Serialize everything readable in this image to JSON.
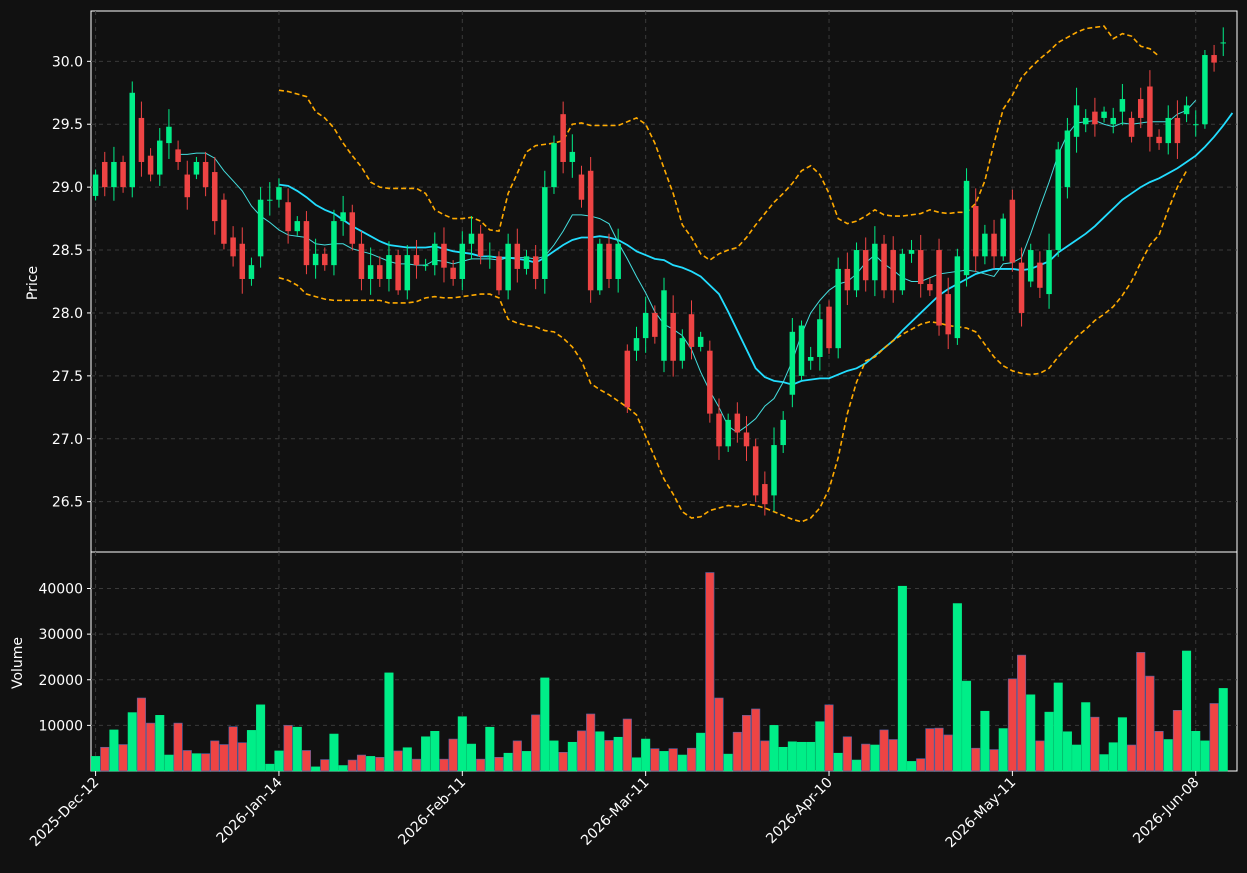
{
  "chart_data": {
    "type": "candlestick",
    "title": "",
    "price_panel": {
      "ylabel": "Price",
      "ylim": [
        26.1,
        30.4
      ],
      "yticks": [
        26.5,
        27.0,
        27.5,
        28.0,
        28.5,
        29.0,
        29.5,
        30.0
      ],
      "ytick_labels": [
        "26.5",
        "27.0",
        "27.5",
        "28.0",
        "28.5",
        "29.0",
        "29.5",
        "30.0"
      ],
      "grid": true
    },
    "volume_panel": {
      "ylabel": "Volume",
      "ylim": [
        0,
        48000
      ],
      "yticks": [
        10000,
        20000,
        30000,
        40000
      ],
      "ytick_labels": [
        "10000",
        "20000",
        "30000",
        "40000"
      ],
      "grid": true
    },
    "xticks": [
      {
        "index": 0,
        "label": "2025-Dec-12"
      },
      {
        "index": 20,
        "label": "2026-Jan-14"
      },
      {
        "index": 40,
        "label": "2026-Feb-11"
      },
      {
        "index": 60,
        "label": "2026-Mar-11"
      },
      {
        "index": 80,
        "label": "2026-Apr-10"
      },
      {
        "index": 100,
        "label": "2026-May-11"
      },
      {
        "index": 120,
        "label": "2026-Jun-08"
      }
    ],
    "xlim": [
      -0.5,
      124.5
    ],
    "colors": {
      "background": "#111111",
      "up": "#00ee88",
      "down": "#ee4444",
      "ma_fast": "#44dddd",
      "ma_slow": "#22ddff",
      "bands": "#ffaa00",
      "grid": "#3a3a3a",
      "text": "#ffffff"
    },
    "series": [
      {
        "type": "ohlc",
        "close": [
          29.1,
          29.0,
          29.2,
          29.0,
          29.75,
          29.2,
          29.1,
          29.37,
          29.48,
          29.2,
          28.92,
          29.2,
          29.0,
          28.73,
          28.55,
          28.45,
          28.27,
          28.38,
          28.9,
          28.9,
          29.0,
          28.65,
          28.73,
          28.38,
          28.47,
          28.38,
          28.73,
          28.8,
          28.55,
          28.27,
          28.38,
          28.27,
          28.46,
          28.18,
          28.46,
          28.38,
          28.38,
          28.55,
          28.36,
          28.27,
          28.55,
          28.63,
          28.45,
          28.45,
          28.18,
          28.55,
          28.35,
          28.45,
          28.27,
          29.0,
          29.35,
          29.2,
          29.28,
          28.9,
          28.18,
          28.55,
          28.27,
          28.55,
          27.25,
          27.8,
          28.0,
          27.81,
          28.18,
          27.62,
          27.8,
          27.73,
          27.81,
          27.2,
          26.94,
          27.15,
          27.05,
          26.94,
          26.55,
          26.48,
          26.95,
          27.15,
          27.85,
          27.9,
          27.65,
          27.95,
          27.72,
          28.35,
          28.18,
          28.5,
          28.26,
          28.55,
          28.18,
          28.18,
          28.47,
          28.5,
          28.23,
          28.18,
          27.9,
          27.83,
          28.45,
          29.05,
          28.45,
          28.63,
          28.45,
          28.75,
          28.4,
          28.0,
          28.5,
          28.2,
          28.5,
          29.3,
          29.45,
          29.65,
          29.55,
          29.5,
          29.6,
          29.55,
          29.7,
          29.4,
          29.55,
          29.4,
          29.35,
          29.55,
          29.35,
          29.65,
          29.5,
          30.05,
          29.99,
          30.15
        ],
        "open": [
          28.93,
          29.2,
          29.0,
          29.2,
          29.0,
          29.55,
          29.25,
          29.1,
          29.35,
          29.3,
          29.1,
          29.1,
          29.2,
          29.12,
          28.9,
          28.6,
          28.55,
          28.27,
          28.45,
          28.9,
          28.9,
          28.88,
          28.65,
          28.73,
          28.38,
          28.47,
          28.38,
          28.73,
          28.8,
          28.55,
          28.27,
          28.38,
          28.27,
          28.46,
          28.18,
          28.46,
          28.38,
          28.38,
          28.55,
          28.36,
          28.27,
          28.55,
          28.63,
          28.45,
          28.45,
          28.18,
          28.55,
          28.35,
          28.45,
          28.27,
          29.0,
          29.58,
          29.2,
          29.1,
          29.13,
          28.18,
          28.55,
          28.27,
          27.7,
          27.7,
          27.8,
          28.0,
          27.62,
          28.0,
          27.62,
          27.99,
          27.73,
          27.7,
          27.2,
          26.94,
          27.2,
          27.05,
          26.94,
          26.64,
          26.55,
          26.95,
          27.35,
          27.5,
          27.62,
          27.65,
          28.05,
          27.72,
          28.35,
          28.18,
          28.5,
          28.26,
          28.55,
          28.5,
          28.18,
          28.47,
          28.5,
          28.23,
          28.5,
          28.15,
          27.8,
          28.3,
          28.85,
          28.45,
          28.63,
          28.45,
          28.9,
          28.4,
          28.25,
          28.4,
          28.15,
          28.5,
          29.0,
          29.4,
          29.5,
          29.6,
          29.55,
          29.5,
          29.6,
          29.55,
          29.7,
          29.8,
          29.4,
          29.35,
          29.55,
          29.58,
          29.5,
          29.5,
          30.05,
          30.15
        ]
      },
      {
        "type": "volume",
        "values": [
          3200,
          5200,
          9000,
          5800,
          12800,
          16000,
          10500,
          12200,
          3500,
          10500,
          4500,
          3800,
          3800,
          6600,
          5800,
          9700,
          6200,
          8900,
          14500,
          1500,
          4400,
          10000,
          9600,
          4500,
          900,
          2500,
          8100,
          1200,
          2400,
          3500,
          3200,
          3000,
          21500,
          4400,
          5100,
          2600,
          7500,
          8700,
          2600,
          7000,
          11900,
          5900,
          2600,
          9600,
          3000,
          3900,
          6600,
          4300,
          12300,
          20400,
          6600,
          4100,
          6300,
          8800,
          12500,
          8600,
          6700,
          7400,
          11400,
          2900,
          7000,
          4900,
          4300,
          4900,
          3500,
          5000,
          8300,
          43500,
          16000,
          3700,
          8500,
          12200,
          13600,
          6600,
          10000,
          5200,
          6400,
          6300,
          6300,
          10800,
          14500,
          3900,
          7500,
          2400,
          5900,
          5700,
          9000,
          6900,
          40500,
          2100,
          2700,
          9300,
          9400,
          7900,
          36700,
          19700,
          5000,
          13100,
          4700,
          9300,
          20200,
          25400,
          16700,
          6600,
          12900,
          19300,
          8600,
          5700,
          15000,
          11800,
          3600,
          6200,
          11700,
          5700,
          26000,
          20800,
          8700,
          6900,
          13300,
          26300,
          8700,
          6600,
          14800,
          18100,
          8000
        ]
      },
      {
        "type": "line",
        "name": "",
        "data": [
          null,
          null,
          null,
          null,
          null,
          null,
          null,
          null,
          null,
          null,
          null,
          null,
          null,
          null,
          null,
          null,
          null,
          null,
          null,
          null,
          29.02,
          29.01,
          28.97,
          28.92,
          28.86,
          28.82,
          28.79,
          28.74,
          28.69,
          28.65,
          28.61,
          28.57,
          28.54,
          28.53,
          28.52,
          28.52,
          28.52,
          28.53,
          28.51,
          28.49,
          28.48,
          28.47,
          28.45,
          28.45,
          28.44,
          28.44,
          28.43,
          28.42,
          28.4,
          28.44,
          28.49,
          28.54,
          28.58,
          28.6,
          28.6,
          28.61,
          28.6,
          28.58,
          28.54,
          28.49,
          28.46,
          28.43,
          28.42,
          28.38,
          28.36,
          28.33,
          28.29,
          28.22,
          28.15,
          28.01,
          27.86,
          27.71,
          27.56,
          27.49,
          27.46,
          27.45,
          27.43,
          27.46,
          27.47,
          27.48,
          27.48,
          27.51,
          27.54,
          27.56,
          27.6,
          27.66,
          27.72,
          27.78,
          27.86,
          27.93,
          28.0,
          28.07,
          28.14,
          28.19,
          28.23,
          28.27,
          28.31,
          28.33,
          28.35,
          28.35,
          28.35,
          28.34,
          28.35,
          28.38,
          28.41,
          28.48,
          28.53,
          28.58,
          28.63,
          28.69,
          28.76,
          28.83,
          28.9,
          28.95,
          29.0,
          29.04,
          29.07,
          29.11,
          29.15,
          29.2,
          29.25,
          29.32,
          29.4,
          29.49,
          29.59
        ]
      },
      {
        "type": "line",
        "name": "",
        "data": [
          null,
          null,
          null,
          null,
          null,
          null,
          null,
          null,
          null,
          29.26,
          29.26,
          29.27,
          29.27,
          29.23,
          29.13,
          29.05,
          28.97,
          28.85,
          28.77,
          28.72,
          28.66,
          28.62,
          28.61,
          28.6,
          28.55,
          28.54,
          28.55,
          28.55,
          28.51,
          28.49,
          28.47,
          28.44,
          28.41,
          28.39,
          28.39,
          28.38,
          28.38,
          28.42,
          28.41,
          28.39,
          28.41,
          28.43,
          28.43,
          28.43,
          28.42,
          28.44,
          28.44,
          28.44,
          28.43,
          28.45,
          28.54,
          28.65,
          28.78,
          28.78,
          28.77,
          28.75,
          28.71,
          28.56,
          28.43,
          28.29,
          28.16,
          28.01,
          27.91,
          27.87,
          27.82,
          27.71,
          27.53,
          27.38,
          27.25,
          27.1,
          27.05,
          27.1,
          27.16,
          27.26,
          27.32,
          27.45,
          27.62,
          27.83,
          28.0,
          28.1,
          28.18,
          28.23,
          28.25,
          28.31,
          28.4,
          28.46,
          28.39,
          28.34,
          28.28,
          28.25,
          28.25,
          28.28,
          28.31,
          28.32,
          28.33,
          28.34,
          28.33,
          28.31,
          28.29,
          28.39,
          28.4,
          28.44,
          28.63,
          28.84,
          29.04,
          29.26,
          29.42,
          29.51,
          29.52,
          29.53,
          29.5,
          29.48,
          29.51,
          29.5,
          29.51,
          29.52,
          29.52,
          29.52,
          29.58,
          29.61,
          29.69
        ]
      },
      {
        "type": "line",
        "name": "",
        "data": [
          null,
          null,
          null,
          null,
          null,
          null,
          null,
          null,
          null,
          null,
          null,
          null,
          null,
          null,
          null,
          null,
          null,
          null,
          null,
          null,
          29.77,
          29.76,
          29.74,
          29.72,
          29.6,
          29.55,
          29.47,
          29.35,
          29.25,
          29.16,
          29.04,
          29.0,
          28.99,
          28.99,
          28.99,
          28.99,
          28.95,
          28.82,
          28.78,
          28.75,
          28.75,
          28.76,
          28.73,
          28.66,
          28.65,
          28.95,
          29.11,
          29.28,
          29.33,
          29.34,
          29.35,
          29.37,
          29.5,
          29.51,
          29.49,
          29.49,
          29.49,
          29.49,
          29.52,
          29.55,
          29.5,
          29.35,
          29.15,
          28.95,
          28.7,
          28.6,
          28.47,
          28.42,
          28.47,
          28.5,
          28.52,
          28.6,
          28.7,
          28.79,
          28.88,
          28.95,
          29.03,
          29.13,
          29.17,
          29.1,
          28.95,
          28.75,
          28.71,
          28.73,
          28.77,
          28.82,
          28.78,
          28.77,
          28.77,
          28.78,
          28.79,
          28.82,
          28.8,
          28.79,
          28.8,
          28.8,
          28.87,
          29.05,
          29.35,
          29.62,
          29.73,
          29.87,
          29.95,
          30.02,
          30.08,
          30.15,
          30.19,
          30.23,
          30.26,
          30.27,
          30.28,
          30.18,
          30.22,
          30.2,
          30.12,
          30.1,
          30.04
        ]
      },
      {
        "type": "line",
        "name": "",
        "data": [
          null,
          null,
          null,
          null,
          null,
          null,
          null,
          null,
          null,
          null,
          null,
          null,
          null,
          null,
          null,
          null,
          null,
          null,
          null,
          null,
          28.28,
          28.26,
          28.22,
          28.15,
          28.13,
          28.11,
          28.1,
          28.1,
          28.1,
          28.1,
          28.1,
          28.1,
          28.08,
          28.08,
          28.08,
          28.09,
          28.12,
          28.13,
          28.12,
          28.12,
          28.13,
          28.14,
          28.15,
          28.15,
          28.12,
          27.95,
          27.92,
          27.9,
          27.89,
          27.86,
          27.85,
          27.8,
          27.73,
          27.62,
          27.44,
          27.39,
          27.35,
          27.3,
          27.25,
          27.19,
          27.02,
          26.85,
          26.68,
          26.56,
          26.42,
          26.37,
          26.38,
          26.43,
          26.45,
          26.47,
          26.46,
          26.48,
          26.47,
          26.45,
          26.42,
          26.39,
          26.36,
          26.34,
          26.37,
          26.45,
          26.6,
          26.85,
          27.2,
          27.45,
          27.62,
          27.65,
          27.72,
          27.78,
          27.83,
          27.87,
          27.91,
          27.93,
          27.92,
          27.9,
          27.89,
          27.88,
          27.85,
          27.75,
          27.65,
          27.58,
          27.54,
          27.52,
          27.51,
          27.52,
          27.56,
          27.65,
          27.73,
          27.81,
          27.87,
          27.94,
          27.99,
          28.05,
          28.14,
          28.25,
          28.4,
          28.54,
          28.62,
          28.82,
          29.0,
          29.13
        ]
      }
    ]
  }
}
